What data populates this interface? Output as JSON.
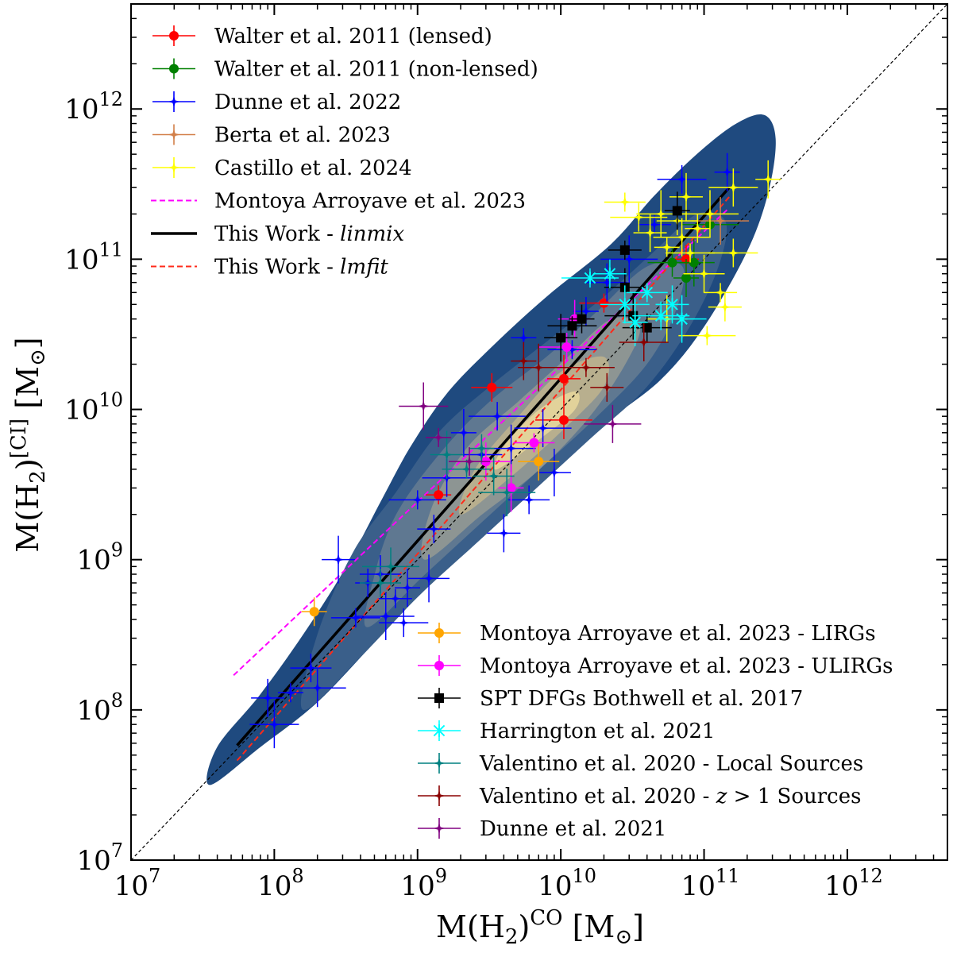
{
  "chart_data": {
    "type": "scatter",
    "x_scale": "log",
    "y_scale": "log",
    "xlim": [
      10000000.0,
      5000000000000.0
    ],
    "ylim": [
      10000000.0,
      5000000000000.0
    ],
    "xlabel": {
      "main": "M(H",
      "sub": "2",
      "sup": "CO",
      "unit": "[M",
      "unit_sub": "⊙",
      "unit_close": "]"
    },
    "ylabel": {
      "main": "M(H",
      "sub": "2",
      "sup": "[CI]",
      "unit": "[M",
      "unit_sub": "⊙",
      "unit_close": "]"
    },
    "x_ticks": [
      {
        "value": 10000000.0,
        "base": "10",
        "exp": "7"
      },
      {
        "value": 100000000.0,
        "base": "10",
        "exp": "8"
      },
      {
        "value": 1000000000.0,
        "base": "10",
        "exp": "9"
      },
      {
        "value": 10000000000.0,
        "base": "10",
        "exp": "10"
      },
      {
        "value": 100000000000.0,
        "base": "10",
        "exp": "11"
      },
      {
        "value": 1000000000000.0,
        "base": "10",
        "exp": "12"
      }
    ],
    "y_ticks": [
      {
        "value": 10000000.0,
        "base": "10",
        "exp": "7"
      },
      {
        "value": 100000000.0,
        "base": "10",
        "exp": "8"
      },
      {
        "value": 1000000000.0,
        "base": "10",
        "exp": "9"
      },
      {
        "value": 10000000000.0,
        "base": "10",
        "exp": "10"
      },
      {
        "value": 100000000000.0,
        "base": "10",
        "exp": "11"
      },
      {
        "value": 1000000000000.0,
        "base": "10",
        "exp": "12"
      }
    ],
    "density_contours": {
      "colors": [
        "#1f4a7f",
        "#3a5f8a",
        "#5f7891",
        "#8d9593",
        "#b8af8e",
        "#e2d29a"
      ],
      "levels": [
        [
          [
            7.55,
            7.5
          ],
          [
            7.9,
            7.75
          ],
          [
            8.3,
            8.05
          ],
          [
            8.7,
            8.45
          ],
          [
            9.1,
            8.85
          ],
          [
            9.5,
            9.2
          ],
          [
            9.9,
            9.55
          ],
          [
            10.3,
            9.9
          ],
          [
            10.7,
            10.2
          ],
          [
            11.0,
            10.55
          ],
          [
            11.3,
            11.05
          ],
          [
            11.45,
            11.45
          ],
          [
            11.5,
            11.8
          ],
          [
            11.42,
            11.96
          ],
          [
            11.22,
            11.9
          ],
          [
            10.95,
            11.7
          ],
          [
            10.65,
            11.42
          ],
          [
            10.35,
            11.1
          ],
          [
            9.9,
            10.75
          ],
          [
            9.5,
            10.4
          ],
          [
            9.2,
            10.1
          ],
          [
            8.95,
            9.75
          ],
          [
            8.75,
            9.4
          ],
          [
            8.5,
            8.95
          ],
          [
            8.2,
            8.5
          ],
          [
            7.9,
            8.1
          ],
          [
            7.6,
            7.75
          ]
        ],
        [
          [
            8.2,
            8.0
          ],
          [
            8.6,
            8.35
          ],
          [
            9.0,
            8.75
          ],
          [
            9.4,
            9.1
          ],
          [
            9.8,
            9.45
          ],
          [
            10.2,
            9.8
          ],
          [
            10.6,
            10.15
          ],
          [
            10.9,
            10.55
          ],
          [
            11.1,
            10.95
          ],
          [
            11.15,
            11.25
          ],
          [
            10.95,
            11.3
          ],
          [
            10.65,
            11.05
          ],
          [
            10.3,
            10.75
          ],
          [
            9.9,
            10.45
          ],
          [
            9.5,
            10.15
          ],
          [
            9.15,
            9.85
          ],
          [
            8.85,
            9.45
          ],
          [
            8.55,
            9.05
          ],
          [
            8.3,
            8.5
          ]
        ],
        [
          [
            8.65,
            8.55
          ],
          [
            9.05,
            8.9
          ],
          [
            9.45,
            9.25
          ],
          [
            9.85,
            9.6
          ],
          [
            10.25,
            9.95
          ],
          [
            10.6,
            10.3
          ],
          [
            10.8,
            10.65
          ],
          [
            10.85,
            10.95
          ],
          [
            10.6,
            10.95
          ],
          [
            10.25,
            10.65
          ],
          [
            9.9,
            10.35
          ],
          [
            9.5,
            10.05
          ],
          [
            9.15,
            9.7
          ],
          [
            8.85,
            9.3
          ],
          [
            8.7,
            8.9
          ]
        ],
        [
          [
            9.05,
            9.0
          ],
          [
            9.45,
            9.3
          ],
          [
            9.85,
            9.6
          ],
          [
            10.2,
            9.95
          ],
          [
            10.45,
            10.3
          ],
          [
            10.55,
            10.55
          ],
          [
            10.35,
            10.6
          ],
          [
            10.05,
            10.35
          ],
          [
            9.7,
            10.05
          ],
          [
            9.35,
            9.75
          ],
          [
            9.1,
            9.35
          ]
        ],
        [
          [
            9.3,
            9.3
          ],
          [
            9.65,
            9.55
          ],
          [
            10.0,
            9.85
          ],
          [
            10.3,
            10.15
          ],
          [
            10.3,
            10.35
          ],
          [
            10.0,
            10.25
          ],
          [
            9.7,
            9.95
          ],
          [
            9.4,
            9.6
          ]
        ],
        [
          [
            9.55,
            9.6
          ],
          [
            9.85,
            9.8
          ],
          [
            10.1,
            10.0
          ],
          [
            10.1,
            10.12
          ],
          [
            9.85,
            10.0
          ],
          [
            9.6,
            9.75
          ]
        ]
      ]
    },
    "lines": [
      {
        "name": "Montoya Arroyave et al. 2023",
        "style": "dashed",
        "color": "#ff00ff",
        "x": [
          52000000.0,
          150000000000.0
        ],
        "y": [
          170000000.0,
          220000000000.0
        ]
      },
      {
        "name": "This Work - ",
        "name_em": "linmix",
        "style": "solid",
        "color": "#000000",
        "x": [
          55000000.0,
          150000000000.0
        ],
        "y": [
          58000000.0,
          300000000000.0
        ]
      },
      {
        "name": "This Work - ",
        "name_em": "lmfit",
        "style": "dashed",
        "color": "#ff2a1a",
        "x": [
          55000000.0,
          150000000000.0
        ],
        "y": [
          46000000.0,
          260000000000.0
        ]
      },
      {
        "name": "one-to-one",
        "style": "dashed-thin",
        "color": "#000000",
        "x": [
          10000000.0,
          5000000000000.0
        ],
        "y": [
          10000000.0,
          5000000000000.0
        ]
      }
    ],
    "series": [
      {
        "name": "Walter et al. 2011 (lensed)",
        "color": "#ff0000",
        "marker": "circle",
        "points": [
          [
            1400000000.0,
            2700000000.0
          ],
          [
            3300000000.0,
            14000000000.0
          ],
          [
            10500000000.0,
            8500000000.0
          ],
          [
            10500000000.0,
            16000000000.0
          ],
          [
            20000000000.0,
            51000000000.0
          ],
          [
            75000000000.0,
            100000000000.0
          ]
        ]
      },
      {
        "name": "Walter et al. 2011 (non-lensed)",
        "color": "#008000",
        "marker": "circle",
        "points": [
          [
            60000000000.0,
            95000000000.0
          ],
          [
            75000000000.0,
            75000000000.0
          ],
          [
            85000000000.0,
            95000000000.0
          ],
          [
            110000000000.0,
            170000000000.0
          ]
        ]
      },
      {
        "name": "Dunne et al. 2022",
        "color": "#0000ff",
        "marker": "star",
        "points": [
          [
            90000000.0,
            120000000.0
          ],
          [
            100000000.0,
            80000000.0
          ],
          [
            130000000.0,
            130000000.0
          ],
          [
            180000000.0,
            190000000.0
          ],
          [
            200000000.0,
            140000000.0
          ],
          [
            280000000.0,
            1000000000.0
          ],
          [
            370000000.0,
            410000000.0
          ],
          [
            450000000.0,
            700000000.0
          ],
          [
            550000000.0,
            800000000.0
          ],
          [
            600000000.0,
            420000000.0
          ],
          [
            700000000.0,
            550000000.0
          ],
          [
            800000000.0,
            380000000.0
          ],
          [
            850000000.0,
            650000000.0
          ],
          [
            1200000000.0,
            750000000.0
          ],
          [
            1000000000.0,
            2500000000.0
          ],
          [
            1300000000.0,
            1600000000.0
          ],
          [
            1600000000.0,
            3500000000.0
          ],
          [
            2100000000.0,
            7000000000.0
          ],
          [
            2800000000.0,
            5000000000.0
          ],
          [
            3600000000.0,
            9000000000.0
          ],
          [
            4000000000.0,
            1500000000.0
          ],
          [
            4500000000.0,
            5500000000.0
          ],
          [
            5500000000.0,
            30000000000.0
          ],
          [
            6000000000.0,
            2500000000.0
          ],
          [
            7500000000.0,
            7500000000.0
          ],
          [
            9000000000.0,
            3800000000.0
          ],
          [
            12000000000.0,
            25000000000.0
          ],
          [
            15000000000.0,
            45000000000.0
          ],
          [
            21000000000.0,
            70000000000.0
          ],
          [
            30000000000.0,
            100000000000.0
          ],
          [
            45000000000.0,
            170000000000.0
          ],
          [
            70000000000.0,
            340000000000.0
          ],
          [
            145000000000.0,
            380000000000.0
          ]
        ]
      },
      {
        "name": "Berta et al. 2023",
        "color": "#d2804a",
        "marker": "star",
        "points": [
          [
            130000000000.0,
            180000000000.0
          ]
        ]
      },
      {
        "name": "Castillo et al. 2024",
        "color": "#ffff00",
        "marker": "star",
        "points": [
          [
            28000000000.0,
            240000000000.0
          ],
          [
            35000000000.0,
            190000000000.0
          ],
          [
            42000000000.0,
            150000000000.0
          ],
          [
            50000000000.0,
            200000000000.0
          ],
          [
            55000000000.0,
            120000000000.0
          ],
          [
            65000000000.0,
            180000000000.0
          ],
          [
            70000000000.0,
            140000000000.0
          ],
          [
            75000000000.0,
            260000000000.0
          ],
          [
            80000000000.0,
            110000000000.0
          ],
          [
            90000000000.0,
            160000000000.0
          ],
          [
            100000000000.0,
            80000000000.0
          ],
          [
            110000000000.0,
            200000000000.0
          ],
          [
            130000000000.0,
            60000000000.0
          ],
          [
            160000000000.0,
            110000000000.0
          ],
          [
            280000000000.0,
            340000000000.0
          ],
          [
            55000000000.0,
            40000000000.0
          ],
          [
            105000000000.0,
            31000000000.0
          ],
          [
            140000000000.0,
            48000000000.0
          ],
          [
            160000000000.0,
            300000000000.0
          ]
        ]
      },
      {
        "name": "Montoya Arroyave et al. 2023 - LIRGs",
        "color": "#ffa500",
        "marker": "circle",
        "points": [
          [
            190000000.0,
            450000000.0
          ],
          [
            7000000000.0,
            4500000000.0
          ]
        ]
      },
      {
        "name": "Montoya Arroyave et al. 2023 - ULIRGs",
        "color": "#ff00ff",
        "marker": "circle",
        "points": [
          [
            3000000000.0,
            4500000000.0
          ],
          [
            4500000000.0,
            3000000000.0
          ],
          [
            6500000000.0,
            6000000000.0
          ],
          [
            11000000000.0,
            26000000000.0
          ],
          [
            12500000000.0,
            40000000000.0
          ]
        ]
      },
      {
        "name": "SPT DFGs Bothwell et al. 2017",
        "color": "#000000",
        "marker": "square",
        "points": [
          [
            10000000000.0,
            30000000000.0
          ],
          [
            12000000000.0,
            36000000000.0
          ],
          [
            14000000000.0,
            40000000000.0
          ],
          [
            28000000000.0,
            65000000000.0
          ],
          [
            32000000000.0,
            42000000000.0
          ],
          [
            28000000000.0,
            115000000000.0
          ],
          [
            40000000000.0,
            35000000000.0
          ],
          [
            65000000000.0,
            210000000000.0
          ]
        ]
      },
      {
        "name": "Harrington et al. 2021",
        "color": "#00ffff",
        "marker": "x",
        "points": [
          [
            16000000000.0,
            75000000000.0
          ],
          [
            22000000000.0,
            80000000000.0
          ],
          [
            28000000000.0,
            50000000000.0
          ],
          [
            33000000000.0,
            38000000000.0
          ],
          [
            40000000000.0,
            60000000000.0
          ],
          [
            50000000000.0,
            42000000000.0
          ],
          [
            60000000000.0,
            50000000000.0
          ],
          [
            70000000000.0,
            40000000000.0
          ]
        ]
      },
      {
        "name": "Valentino et al. 2020 - Local Sources",
        "color": "#008080",
        "marker": "star",
        "points": [
          [
            550000000.0,
            700000000.0
          ],
          [
            650000000.0,
            900000000.0
          ],
          [
            1600000000.0,
            5000000000.0
          ],
          [
            2200000000.0,
            4000000000.0
          ],
          [
            2800000000.0,
            5500000000.0
          ],
          [
            3400000000.0,
            3600000000.0
          ],
          [
            4200000000.0,
            2800000000.0
          ]
        ]
      },
      {
        "name": "Valentino et al. 2020 - z > 1 Sources",
        "name_parts": [
          "Valentino et al. 2020 - ",
          "z",
          " > 1 Sources"
        ],
        "color": "#8b0000",
        "marker": "star",
        "points": [
          [
            5500000000.0,
            21000000000.0
          ],
          [
            7000000000.0,
            19000000000.0
          ],
          [
            15000000000.0,
            19000000000.0
          ],
          [
            21000000000.0,
            14000000000.0
          ],
          [
            38000000000.0,
            28000000000.0
          ]
        ]
      },
      {
        "name": "Dunne et al. 2021",
        "color": "#800080",
        "marker": "star",
        "points": [
          [
            1100000000.0,
            10500000000.0
          ],
          [
            1400000000.0,
            6500000000.0
          ],
          [
            2300000000.0,
            4500000000.0
          ],
          [
            23000000000.0,
            8000000000.0
          ]
        ]
      }
    ],
    "legend_top": [
      {
        "label": "Walter et al. 2011 (lensed)",
        "kind": "marker",
        "ref": 0
      },
      {
        "label": "Walter et al. 2011 (non-lensed)",
        "kind": "marker",
        "ref": 1
      },
      {
        "label": "Dunne et al. 2022",
        "kind": "marker",
        "ref": 2
      },
      {
        "label": "Berta et al. 2023",
        "kind": "marker",
        "ref": 3
      },
      {
        "label": "Castillo et al. 2024",
        "kind": "marker",
        "ref": 4
      },
      {
        "label": "Montoya Arroyave et al. 2023",
        "kind": "line",
        "ref": 0
      },
      {
        "label": "This Work - ",
        "em": "linmix",
        "kind": "line",
        "ref": 1
      },
      {
        "label": "This Work - ",
        "em": "lmfit",
        "kind": "line",
        "ref": 2
      }
    ],
    "legend_bottom": [
      {
        "label": "Montoya Arroyave et al. 2023 - LIRGs",
        "kind": "marker",
        "ref": 5
      },
      {
        "label": "Montoya Arroyave et al. 2023 - ULIRGs",
        "kind": "marker",
        "ref": 6
      },
      {
        "label": "SPT DFGs Bothwell et al. 2017",
        "kind": "marker",
        "ref": 7
      },
      {
        "label": "Harrington et al. 2021",
        "kind": "marker",
        "ref": 8
      },
      {
        "label": "Valentino et al. 2020 - Local Sources",
        "kind": "marker",
        "ref": 9
      },
      {
        "label": "Valentino et al. 2020 - ",
        "em": "z",
        "tail": " > 1 Sources",
        "kind": "marker",
        "ref": 10
      },
      {
        "label": "Dunne et al. 2021",
        "kind": "marker",
        "ref": 11
      }
    ]
  }
}
